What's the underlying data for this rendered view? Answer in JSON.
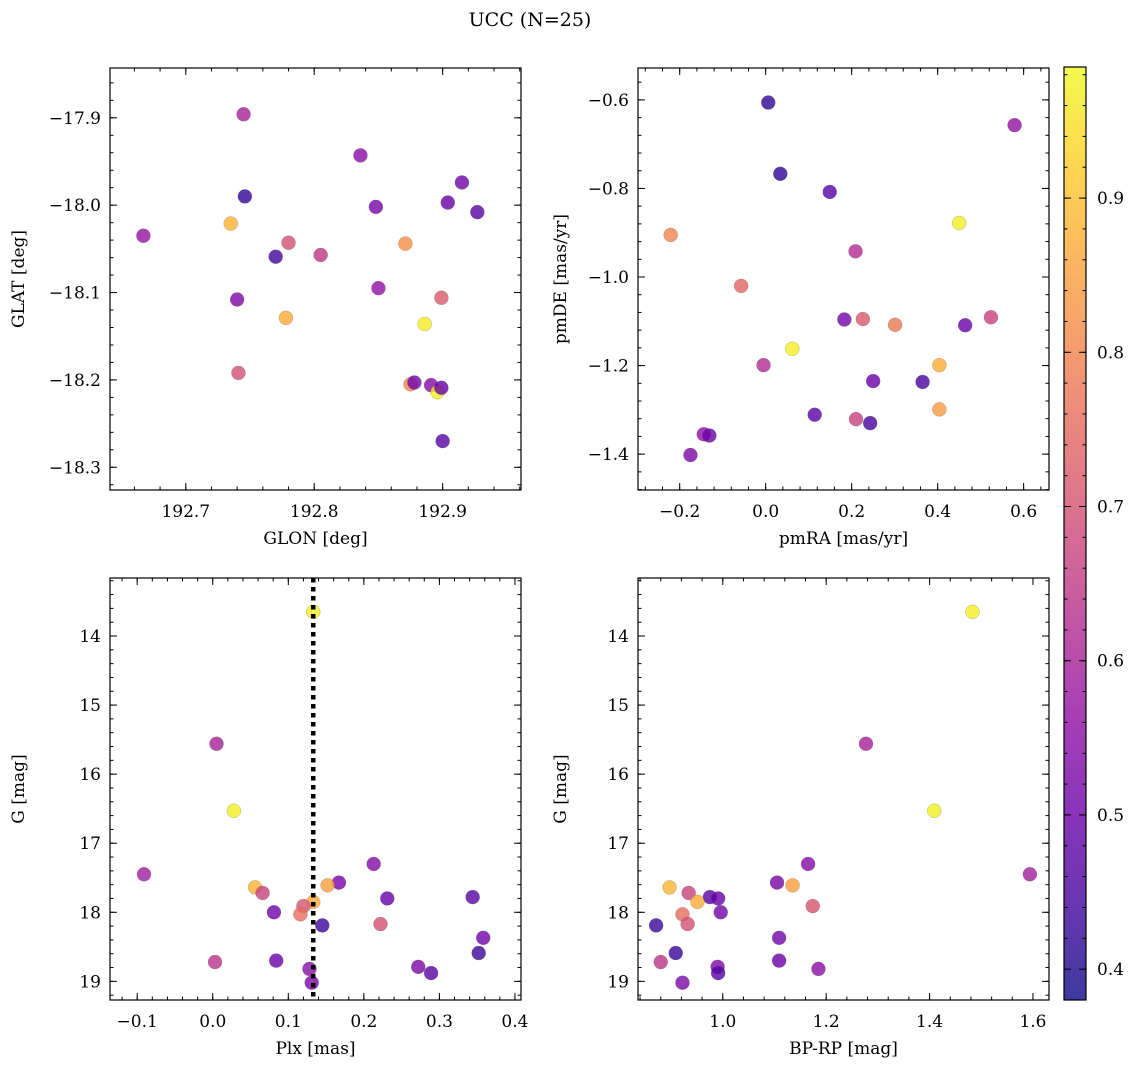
{
  "figure": {
    "title": "UCC (N=25)"
  },
  "colorbar": {
    "ticks": [
      0.4,
      0.5,
      0.6,
      0.7,
      0.8,
      0.9
    ],
    "tick_labels": [
      "0.4",
      "0.5",
      "0.6",
      "0.7",
      "0.8",
      "0.9"
    ],
    "range": [
      0.38,
      0.985
    ],
    "colormap": "plasma",
    "alpha": 0.8
  },
  "chart_data": [
    {
      "type": "scatter",
      "title": "",
      "xlabel": "GLON [deg]",
      "ylabel": "GLAT [deg]",
      "xlim": [
        192.641,
        192.961
      ],
      "ylim": [
        -18.326,
        -17.843
      ],
      "y_inverted": false,
      "xticks": [
        192.7,
        192.8,
        192.9
      ],
      "xtick_labels": [
        "192.7",
        "192.8",
        "192.9"
      ],
      "yticks": [
        -17.9,
        -18.0,
        -18.1,
        -18.2,
        -18.3
      ],
      "ytick_labels": [
        "−17.9",
        "−18.0",
        "−18.1",
        "−18.2",
        "−18.3"
      ],
      "grid": false,
      "points": [
        {
          "x": 192.667,
          "y": -18.035,
          "c": 0.57
        },
        {
          "x": 192.735,
          "y": -18.021,
          "c": 0.88
        },
        {
          "x": 192.74,
          "y": -18.108,
          "c": 0.53
        },
        {
          "x": 192.741,
          "y": -18.192,
          "c": 0.7
        },
        {
          "x": 192.745,
          "y": -17.896,
          "c": 0.6
        },
        {
          "x": 192.746,
          "y": -17.99,
          "c": 0.42
        },
        {
          "x": 192.77,
          "y": -18.059,
          "c": 0.44
        },
        {
          "x": 192.778,
          "y": -18.129,
          "c": 0.87
        },
        {
          "x": 192.78,
          "y": -18.043,
          "c": 0.7
        },
        {
          "x": 192.805,
          "y": -18.057,
          "c": 0.65
        },
        {
          "x": 192.836,
          "y": -17.943,
          "c": 0.55
        },
        {
          "x": 192.848,
          "y": -18.002,
          "c": 0.52
        },
        {
          "x": 192.85,
          "y": -18.095,
          "c": 0.56
        },
        {
          "x": 192.871,
          "y": -18.044,
          "c": 0.82
        },
        {
          "x": 192.875,
          "y": -18.205,
          "c": 0.8
        },
        {
          "x": 192.878,
          "y": -18.203,
          "c": 0.51
        },
        {
          "x": 192.886,
          "y": -18.136,
          "c": 0.97
        },
        {
          "x": 192.891,
          "y": -18.206,
          "c": 0.54
        },
        {
          "x": 192.896,
          "y": -18.214,
          "c": 0.97
        },
        {
          "x": 192.899,
          "y": -18.106,
          "c": 0.72
        },
        {
          "x": 192.899,
          "y": -18.209,
          "c": 0.5
        },
        {
          "x": 192.9,
          "y": -18.27,
          "c": 0.47
        },
        {
          "x": 192.904,
          "y": -17.997,
          "c": 0.5
        },
        {
          "x": 192.915,
          "y": -17.974,
          "c": 0.51
        },
        {
          "x": 192.927,
          "y": -18.008,
          "c": 0.47
        }
      ]
    },
    {
      "type": "scatter",
      "title": "",
      "xlabel": "pmRA [mas/yr]",
      "ylabel": "pmDE [mas/yr]",
      "xlim": [
        -0.297,
        0.659
      ],
      "ylim": [
        -1.481,
        -0.528
      ],
      "y_inverted": false,
      "xticks": [
        -0.2,
        0.0,
        0.2,
        0.4,
        0.6
      ],
      "xtick_labels": [
        "−0.2",
        "0.0",
        "0.2",
        "0.4",
        "0.6"
      ],
      "yticks": [
        -0.6,
        -0.8,
        -1.0,
        -1.2,
        -1.4
      ],
      "ytick_labels": [
        "−0.6",
        "−0.8",
        "−1.0",
        "−1.2",
        "−1.4"
      ],
      "grid": false,
      "points": [
        {
          "x": 0.006,
          "y": -0.606,
          "c": 0.42
        },
        {
          "x": 0.579,
          "y": -0.657,
          "c": 0.57
        },
        {
          "x": 0.034,
          "y": -0.767,
          "c": 0.42
        },
        {
          "x": 0.149,
          "y": -0.808,
          "c": 0.47
        },
        {
          "x": -0.221,
          "y": -0.905,
          "c": 0.8
        },
        {
          "x": 0.45,
          "y": -0.878,
          "c": 0.97
        },
        {
          "x": 0.209,
          "y": -0.942,
          "c": 0.62
        },
        {
          "x": -0.057,
          "y": -1.02,
          "c": 0.74
        },
        {
          "x": 0.183,
          "y": -1.096,
          "c": 0.51
        },
        {
          "x": 0.226,
          "y": -1.095,
          "c": 0.72
        },
        {
          "x": 0.301,
          "y": -1.108,
          "c": 0.78
        },
        {
          "x": 0.464,
          "y": -1.109,
          "c": 0.5
        },
        {
          "x": 0.524,
          "y": -1.091,
          "c": 0.67
        },
        {
          "x": 0.062,
          "y": -1.162,
          "c": 0.97
        },
        {
          "x": -0.005,
          "y": -1.199,
          "c": 0.62
        },
        {
          "x": 0.404,
          "y": -1.199,
          "c": 0.87
        },
        {
          "x": 0.25,
          "y": -1.235,
          "c": 0.5
        },
        {
          "x": 0.365,
          "y": -1.237,
          "c": 0.45
        },
        {
          "x": 0.404,
          "y": -1.299,
          "c": 0.84
        },
        {
          "x": 0.114,
          "y": -1.311,
          "c": 0.47
        },
        {
          "x": 0.21,
          "y": -1.321,
          "c": 0.67
        },
        {
          "x": 0.243,
          "y": -1.33,
          "c": 0.45
        },
        {
          "x": -0.144,
          "y": -1.355,
          "c": 0.56
        },
        {
          "x": -0.131,
          "y": -1.358,
          "c": 0.5
        },
        {
          "x": -0.175,
          "y": -1.402,
          "c": 0.53
        }
      ]
    },
    {
      "type": "scatter",
      "title": "",
      "xlabel": "Plx [mas]",
      "ylabel": "G [mag]",
      "xlim": [
        -0.136,
        0.408
      ],
      "ylim": [
        19.27,
        13.16
      ],
      "y_inverted": true,
      "xticks": [
        -0.1,
        0.0,
        0.1,
        0.2,
        0.3,
        0.4
      ],
      "xtick_labels": [
        "−0.1",
        "0.0",
        "0.1",
        "0.2",
        "0.3",
        "0.4"
      ],
      "yticks": [
        14,
        15,
        16,
        17,
        18,
        19
      ],
      "ytick_labels": [
        "14",
        "15",
        "16",
        "17",
        "18",
        "19"
      ],
      "grid": false,
      "vline": {
        "x": 0.133,
        "style": "dotted",
        "color": "#000000"
      },
      "points": [
        {
          "x": 0.133,
          "y": 13.65,
          "c": 0.97
        },
        {
          "x": 0.005,
          "y": 15.56,
          "c": 0.6
        },
        {
          "x": 0.028,
          "y": 16.53,
          "c": 0.97
        },
        {
          "x": -0.091,
          "y": 17.45,
          "c": 0.59
        },
        {
          "x": 0.213,
          "y": 17.3,
          "c": 0.54
        },
        {
          "x": 0.167,
          "y": 17.57,
          "c": 0.52
        },
        {
          "x": 0.152,
          "y": 17.61,
          "c": 0.85
        },
        {
          "x": 0.056,
          "y": 17.64,
          "c": 0.88
        },
        {
          "x": 0.066,
          "y": 17.72,
          "c": 0.67
        },
        {
          "x": 0.344,
          "y": 17.78,
          "c": 0.47
        },
        {
          "x": 0.231,
          "y": 17.8,
          "c": 0.5
        },
        {
          "x": 0.133,
          "y": 17.85,
          "c": 0.87
        },
        {
          "x": 0.12,
          "y": 17.91,
          "c": 0.71
        },
        {
          "x": 0.081,
          "y": 18.0,
          "c": 0.51
        },
        {
          "x": 0.116,
          "y": 18.03,
          "c": 0.76
        },
        {
          "x": 0.222,
          "y": 18.17,
          "c": 0.7
        },
        {
          "x": 0.145,
          "y": 18.19,
          "c": 0.43
        },
        {
          "x": 0.352,
          "y": 18.59,
          "c": 0.43
        },
        {
          "x": 0.358,
          "y": 18.37,
          "c": 0.51
        },
        {
          "x": 0.003,
          "y": 18.72,
          "c": 0.64
        },
        {
          "x": 0.084,
          "y": 18.7,
          "c": 0.5
        },
        {
          "x": 0.272,
          "y": 18.79,
          "c": 0.53
        },
        {
          "x": 0.128,
          "y": 18.82,
          "c": 0.55
        },
        {
          "x": 0.289,
          "y": 18.88,
          "c": 0.47
        },
        {
          "x": 0.131,
          "y": 19.02,
          "c": 0.53
        }
      ]
    },
    {
      "type": "scatter",
      "title": "",
      "xlabel": "BP-RP [mag]",
      "ylabel": "G [mag]",
      "xlim": [
        0.836,
        1.631
      ],
      "ylim": [
        19.27,
        13.16
      ],
      "y_inverted": true,
      "xticks": [
        1.0,
        1.2,
        1.4,
        1.6
      ],
      "xtick_labels": [
        "1.0",
        "1.2",
        "1.4",
        "1.6"
      ],
      "yticks": [
        14,
        15,
        16,
        17,
        18,
        19
      ],
      "ytick_labels": [
        "14",
        "15",
        "16",
        "17",
        "18",
        "19"
      ],
      "grid": false,
      "points": [
        {
          "x": 1.483,
          "y": 13.65,
          "c": 0.97
        },
        {
          "x": 1.277,
          "y": 15.56,
          "c": 0.6
        },
        {
          "x": 1.409,
          "y": 16.53,
          "c": 0.97
        },
        {
          "x": 1.594,
          "y": 17.45,
          "c": 0.59
        },
        {
          "x": 1.165,
          "y": 17.3,
          "c": 0.54
        },
        {
          "x": 1.105,
          "y": 17.57,
          "c": 0.52
        },
        {
          "x": 1.135,
          "y": 17.61,
          "c": 0.85
        },
        {
          "x": 0.897,
          "y": 17.64,
          "c": 0.88
        },
        {
          "x": 0.934,
          "y": 17.72,
          "c": 0.67
        },
        {
          "x": 0.975,
          "y": 17.78,
          "c": 0.47
        },
        {
          "x": 0.991,
          "y": 17.8,
          "c": 0.5
        },
        {
          "x": 0.951,
          "y": 17.85,
          "c": 0.87
        },
        {
          "x": 1.174,
          "y": 17.91,
          "c": 0.71
        },
        {
          "x": 0.996,
          "y": 18.0,
          "c": 0.51
        },
        {
          "x": 0.922,
          "y": 18.03,
          "c": 0.76
        },
        {
          "x": 0.932,
          "y": 18.17,
          "c": 0.7
        },
        {
          "x": 0.871,
          "y": 18.19,
          "c": 0.43
        },
        {
          "x": 0.909,
          "y": 18.59,
          "c": 0.43
        },
        {
          "x": 1.109,
          "y": 18.37,
          "c": 0.51
        },
        {
          "x": 0.88,
          "y": 18.72,
          "c": 0.64
        },
        {
          "x": 1.109,
          "y": 18.7,
          "c": 0.5
        },
        {
          "x": 0.99,
          "y": 18.79,
          "c": 0.53
        },
        {
          "x": 1.185,
          "y": 18.82,
          "c": 0.55
        },
        {
          "x": 0.991,
          "y": 18.88,
          "c": 0.47
        },
        {
          "x": 0.922,
          "y": 19.02,
          "c": 0.53
        }
      ]
    }
  ]
}
